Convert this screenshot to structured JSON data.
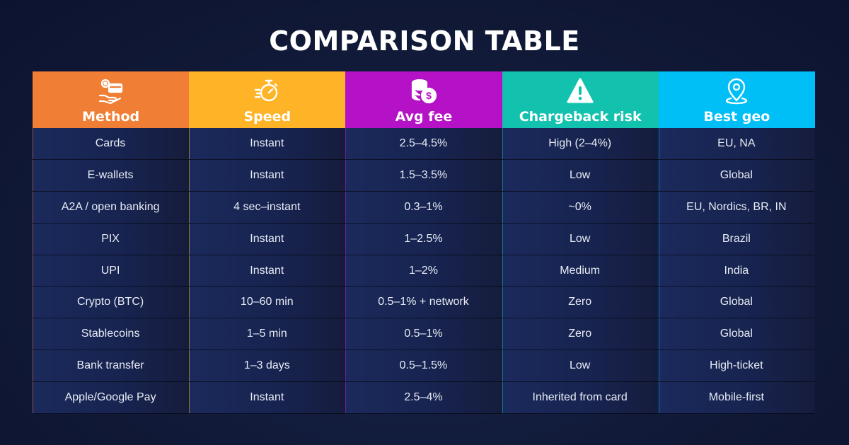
{
  "title": "COMPARISON TABLE",
  "columns": [
    {
      "label": "Method",
      "icon": "payment-hand-icon",
      "color": "#f07f35"
    },
    {
      "label": "Speed",
      "icon": "stopwatch-icon",
      "color": "#ffb427"
    },
    {
      "label": "Avg fee",
      "icon": "coins-icon",
      "color": "#b511c6"
    },
    {
      "label": "Chargeback risk",
      "icon": "warning-icon",
      "color": "#13c2ae"
    },
    {
      "label": "Best geo",
      "icon": "location-pin-icon",
      "color": "#00bff6"
    }
  ],
  "rows": [
    [
      "Cards",
      "Instant",
      "2.5–4.5%",
      "High (2–4%)",
      "EU, NA"
    ],
    [
      "E-wallets",
      "Instant",
      "1.5–3.5%",
      "Low",
      "Global"
    ],
    [
      "A2A / open banking",
      "4 sec–instant",
      "0.3–1%",
      "~0%",
      "EU, Nordics, BR, IN"
    ],
    [
      "PIX",
      "Instant",
      "1–2.5%",
      "Low",
      "Brazil"
    ],
    [
      "UPI",
      "Instant",
      "1–2%",
      "Medium",
      "India"
    ],
    [
      "Crypto (BTC)",
      "10–60 min",
      "0.5–1% + network",
      "Zero",
      "Global"
    ],
    [
      "Stablecoins",
      "1–5 min",
      "0.5–1%",
      "Zero",
      "Global"
    ],
    [
      "Bank transfer",
      "1–3 days",
      "0.5–1.5%",
      "Low",
      "High-ticket"
    ],
    [
      "Apple/Google Pay",
      "Instant",
      "2.5–4%",
      "Inherited from card",
      "Mobile-first"
    ]
  ]
}
